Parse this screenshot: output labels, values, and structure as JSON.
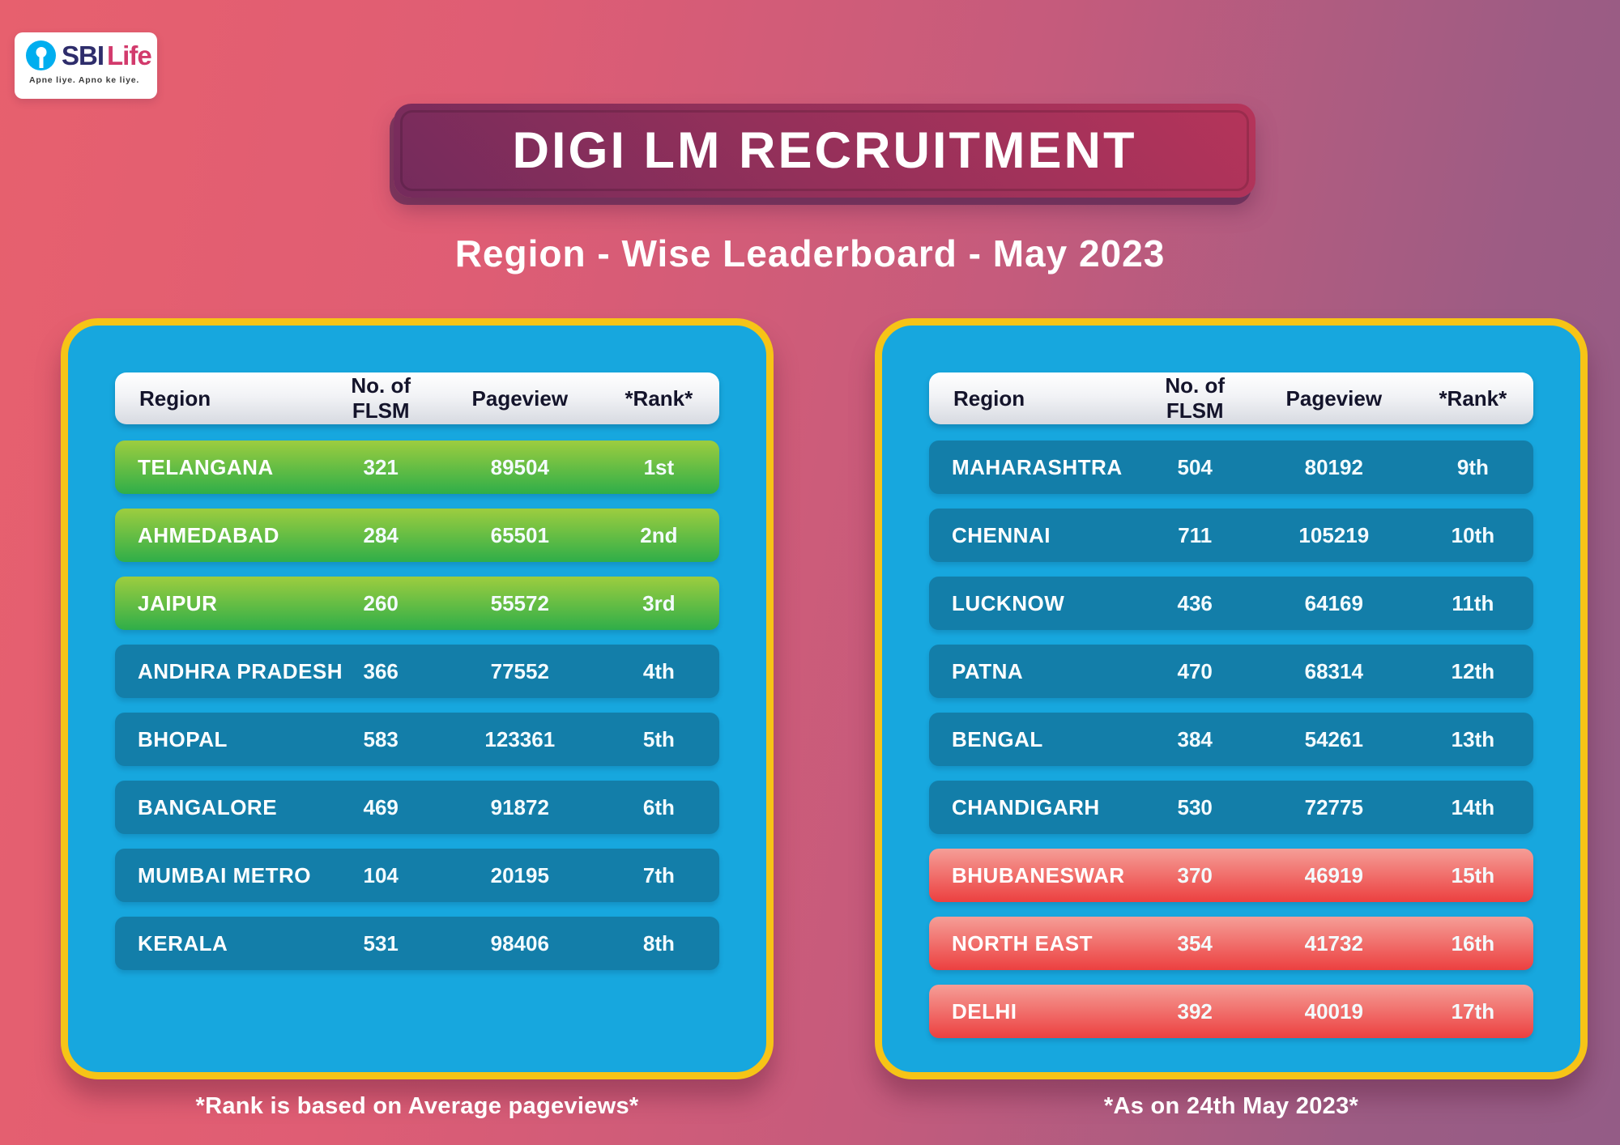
{
  "logo": {
    "sbi": "SBI",
    "life": "Life",
    "tagline": "Apne liye. Apno ke liye."
  },
  "header": {
    "title": "DIGI LM RECRUITMENT",
    "subtitle": "Region - Wise Leaderboard - May 2023"
  },
  "columns": {
    "region": "Region",
    "flsm": "No. of  FLSM",
    "pageview": "Pageview",
    "rank": "*Rank*"
  },
  "left_table": {
    "rows": [
      {
        "region": "TELANGANA",
        "flsm": "321",
        "pageview": "89504",
        "rank": "1st",
        "tier": "green"
      },
      {
        "region": "AHMEDABAD",
        "flsm": "284",
        "pageview": "65501",
        "rank": "2nd",
        "tier": "green"
      },
      {
        "region": "JAIPUR",
        "flsm": "260",
        "pageview": "55572",
        "rank": "3rd",
        "tier": "green"
      },
      {
        "region": "ANDHRA PRADESH",
        "flsm": "366",
        "pageview": "77552",
        "rank": "4th",
        "tier": "blue"
      },
      {
        "region": "BHOPAL",
        "flsm": "583",
        "pageview": "123361",
        "rank": "5th",
        "tier": "blue"
      },
      {
        "region": "BANGALORE",
        "flsm": "469",
        "pageview": "91872",
        "rank": "6th",
        "tier": "blue"
      },
      {
        "region": "MUMBAI METRO",
        "flsm": "104",
        "pageview": "20195",
        "rank": "7th",
        "tier": "blue"
      },
      {
        "region": "KERALA",
        "flsm": "531",
        "pageview": "98406",
        "rank": "8th",
        "tier": "blue"
      }
    ],
    "footnote": "*Rank is based on Average pageviews*"
  },
  "right_table": {
    "rows": [
      {
        "region": "MAHARASHTRA",
        "flsm": "504",
        "pageview": "80192",
        "rank": "9th",
        "tier": "blue"
      },
      {
        "region": "CHENNAI",
        "flsm": "711",
        "pageview": "105219",
        "rank": "10th",
        "tier": "blue"
      },
      {
        "region": "LUCKNOW",
        "flsm": "436",
        "pageview": "64169",
        "rank": "11th",
        "tier": "blue"
      },
      {
        "region": "PATNA",
        "flsm": "470",
        "pageview": "68314",
        "rank": "12th",
        "tier": "blue"
      },
      {
        "region": "BENGAL",
        "flsm": "384",
        "pageview": "54261",
        "rank": "13th",
        "tier": "blue"
      },
      {
        "region": "CHANDIGARH",
        "flsm": "530",
        "pageview": "72775",
        "rank": "14th",
        "tier": "blue"
      },
      {
        "region": "BHUBANESWAR",
        "flsm": "370",
        "pageview": "46919",
        "rank": "15th",
        "tier": "red"
      },
      {
        "region": "NORTH EAST",
        "flsm": "354",
        "pageview": "41732",
        "rank": "16th",
        "tier": "red"
      },
      {
        "region": "DELHI",
        "flsm": "392",
        "pageview": "40019",
        "rank": "17th",
        "tier": "red"
      }
    ],
    "footnote": "*As on 24th May 2023*"
  },
  "colors": {
    "bg_left": "#e7606e",
    "bg_right": "#9c5c84",
    "panel_blue": "#17a7de",
    "border_yellow": "#f6c417",
    "row_blue": "#137ea9",
    "green_top": "#9dcd3f",
    "green_bottom": "#2fae49",
    "red_top": "#f59e97",
    "red_bottom": "#ec4040",
    "banner_light": "#b5345a",
    "banner_dark": "#742b5c",
    "sbi_blue": "#00aeef",
    "sbi_navy": "#2e2d6b",
    "sbi_pink": "#d23a6c"
  },
  "chart_data": [
    {
      "type": "table",
      "title": "DIGI LM RECRUITMENT - Region - Wise Leaderboard - May 2023 (Ranks 1-8)",
      "columns": [
        "Region",
        "No. of FLSM",
        "Pageview",
        "Rank"
      ],
      "rows": [
        [
          "TELANGANA",
          321,
          89504,
          "1st"
        ],
        [
          "AHMEDABAD",
          284,
          65501,
          "2nd"
        ],
        [
          "JAIPUR",
          260,
          55572,
          "3rd"
        ],
        [
          "ANDHRA PRADESH",
          366,
          77552,
          "4th"
        ],
        [
          "BHOPAL",
          583,
          123361,
          "5th"
        ],
        [
          "BANGALORE",
          469,
          91872,
          "6th"
        ],
        [
          "MUMBAI METRO",
          104,
          20195,
          "7th"
        ],
        [
          "KERALA",
          531,
          98406,
          "8th"
        ]
      ],
      "notes": "*Rank is based on Average pageviews*. Top 3 highlighted green."
    },
    {
      "type": "table",
      "title": "DIGI LM RECRUITMENT - Region - Wise Leaderboard - May 2023 (Ranks 9-17)",
      "columns": [
        "Region",
        "No. of FLSM",
        "Pageview",
        "Rank"
      ],
      "rows": [
        [
          "MAHARASHTRA",
          504,
          80192,
          "9th"
        ],
        [
          "CHENNAI",
          711,
          105219,
          "10th"
        ],
        [
          "LUCKNOW",
          436,
          64169,
          "11th"
        ],
        [
          "PATNA",
          470,
          68314,
          "12th"
        ],
        [
          "BENGAL",
          384,
          54261,
          "13th"
        ],
        [
          "CHANDIGARH",
          530,
          72775,
          "14th"
        ],
        [
          "BHUBANESWAR",
          370,
          46919,
          "15th"
        ],
        [
          "NORTH EAST",
          354,
          41732,
          "16th"
        ],
        [
          "DELHI",
          392,
          40019,
          "17th"
        ]
      ],
      "notes": "*As on 24th May 2023*. Bottom 3 highlighted red."
    }
  ]
}
